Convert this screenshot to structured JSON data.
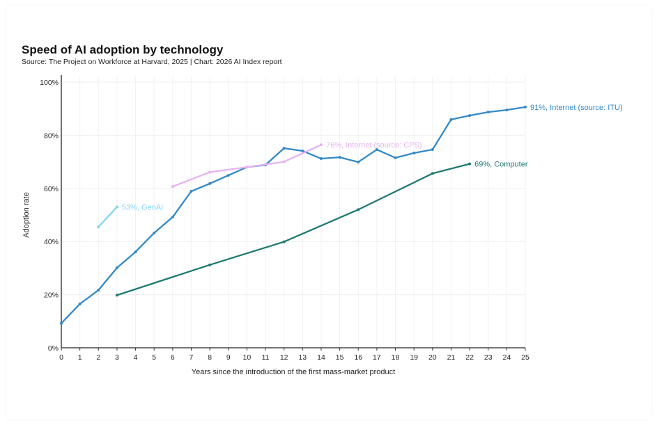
{
  "chart_data": {
    "type": "line",
    "title": "Speed of AI adoption by technology",
    "subtitle": "Source: The Project on Workforce at Harvard, 2025 | Chart: 2026 AI Index report",
    "xlabel": "Years since the introduction of the first mass-market product",
    "ylabel": "Adoption rate",
    "xlim": [
      0,
      25
    ],
    "ylim": [
      0,
      100
    ],
    "xticks": [
      0,
      1,
      2,
      3,
      4,
      5,
      6,
      7,
      8,
      9,
      10,
      11,
      12,
      13,
      14,
      15,
      16,
      17,
      18,
      19,
      20,
      21,
      22,
      23,
      24,
      25
    ],
    "yticks": [
      0,
      20,
      40,
      60,
      80,
      100
    ],
    "ytick_labels": [
      "0%",
      "20%",
      "40%",
      "60%",
      "80%",
      "100%"
    ],
    "grid": true,
    "series": [
      {
        "name": "Internet (source: ITU)",
        "label": "91%, Internet (source: ITU)",
        "color": "#3389c6",
        "x": [
          0,
          1,
          2,
          3,
          4,
          5,
          6,
          7,
          8,
          9,
          10,
          11,
          12,
          13,
          14,
          15,
          16,
          17,
          18,
          19,
          20,
          21,
          22,
          23,
          24,
          25
        ],
        "y": [
          9.2,
          16.5,
          21.7,
          30.1,
          36.1,
          43.2,
          49.2,
          58.9,
          61.8,
          64.9,
          68,
          68.8,
          75.1,
          74.1,
          71.2,
          71.7,
          69.9,
          74.6,
          71.5,
          73.3,
          74.6,
          85.9,
          87.4,
          88.7,
          89.5,
          90.6
        ]
      },
      {
        "name": "Internet (source: CPS)",
        "label": "76%, Internet (source: CPS)",
        "color": "#e8b2f2",
        "x": [
          6,
          8,
          10,
          12,
          14
        ],
        "y": [
          60.7,
          66.1,
          68,
          70,
          76.4
        ]
      },
      {
        "name": "GenAI",
        "label": "53%, GenAI",
        "color": "#84d5f5",
        "x": [
          2,
          3
        ],
        "y": [
          45.5,
          53
        ]
      },
      {
        "name": "Computer",
        "label": "69%, Computer",
        "color": "#1f7a70",
        "x": [
          3,
          8,
          12,
          16,
          20,
          22
        ],
        "y": [
          19.8,
          31.2,
          39.9,
          52,
          65.6,
          69.2
        ]
      }
    ]
  }
}
